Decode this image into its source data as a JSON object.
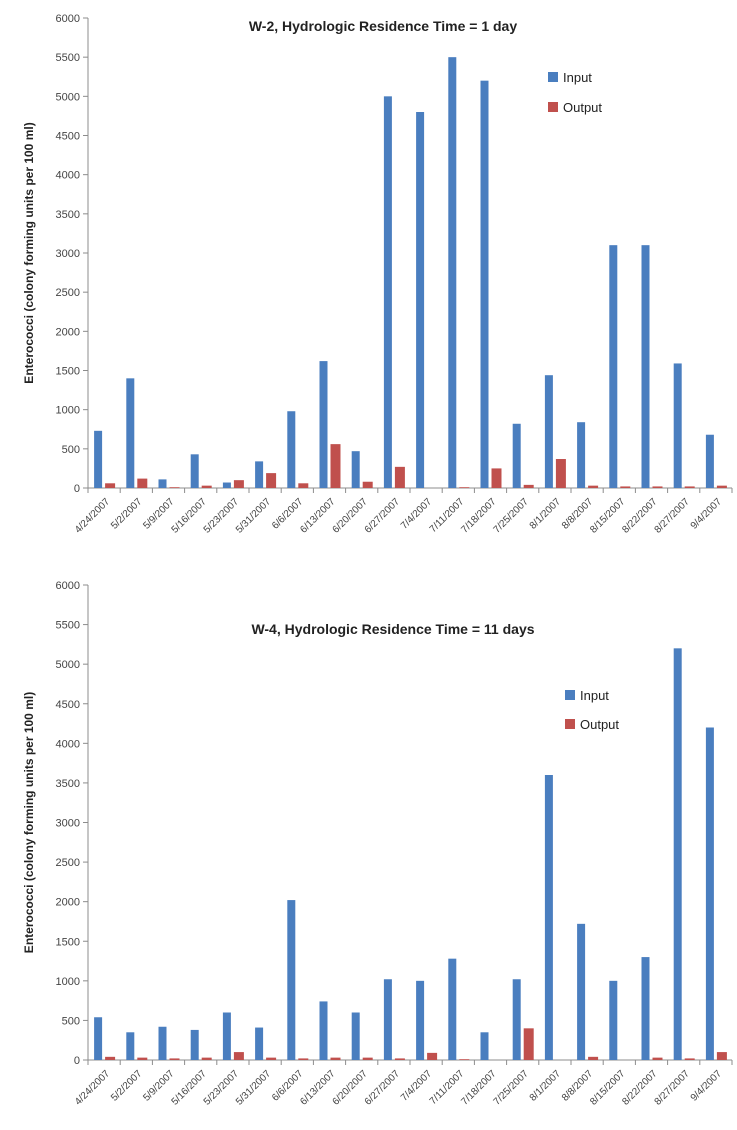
{
  "chart_data": [
    {
      "type": "bar",
      "title": "W-2, Hydrologic Residence Time = 1 day",
      "xlabel": "",
      "ylabel": "Enterococci (colony forming units per 100 ml)",
      "ylim": [
        0,
        6000
      ],
      "yticks": [
        "0",
        "500",
        "1000",
        "1500",
        "2000",
        "2500",
        "3000",
        "3500",
        "4000",
        "4500",
        "5000",
        "5500",
        "6000"
      ],
      "legend_position": "top-right",
      "grid": false,
      "categories": [
        "4/24/2007",
        "5/2/2007",
        "5/9/2007",
        "5/16/2007",
        "5/23/2007",
        "5/31/2007",
        "6/6/2007",
        "6/13/2007",
        "6/20/2007",
        "6/27/2007",
        "7/4/2007",
        "7/11/2007",
        "7/18/2007",
        "7/25/2007",
        "8/1/2007",
        "8/8/2007",
        "8/15/2007",
        "8/22/2007",
        "8/27/2007",
        "9/4/2007"
      ],
      "series": [
        {
          "name": "Input",
          "color": "#4a7ebf",
          "values": [
            730,
            1400,
            110,
            430,
            70,
            340,
            980,
            1620,
            470,
            5000,
            4800,
            5500,
            5200,
            820,
            1440,
            840,
            3100,
            3100,
            1590,
            680
          ]
        },
        {
          "name": "Output",
          "color": "#c0504d",
          "values": [
            60,
            120,
            10,
            30,
            100,
            190,
            60,
            560,
            80,
            270,
            0,
            10,
            250,
            40,
            370,
            30,
            20,
            20,
            20,
            30
          ]
        }
      ]
    },
    {
      "type": "bar",
      "title": "W-4, Hydrologic Residence Time = 11 days",
      "xlabel": "",
      "ylabel": "Enterococci (colony forming units per 100 ml)",
      "ylim": [
        0,
        6000
      ],
      "yticks": [
        "0",
        "500",
        "1000",
        "1500",
        "2000",
        "2500",
        "3000",
        "3500",
        "4000",
        "4500",
        "5000",
        "5500",
        "6000"
      ],
      "legend_position": "top-right",
      "grid": false,
      "categories": [
        "4/24/2007",
        "5/2/2007",
        "5/9/2007",
        "5/16/2007",
        "5/23/2007",
        "5/31/2007",
        "6/6/2007",
        "6/13/2007",
        "6/20/2007",
        "6/27/2007",
        "7/4/2007",
        "7/11/2007",
        "7/18/2007",
        "7/25/2007",
        "8/1/2007",
        "8/8/2007",
        "8/15/2007",
        "8/22/2007",
        "8/27/2007",
        "9/4/2007"
      ],
      "series": [
        {
          "name": "Input",
          "color": "#4a7ebf",
          "values": [
            540,
            350,
            420,
            380,
            600,
            410,
            2020,
            740,
            600,
            1020,
            1000,
            1280,
            350,
            1020,
            3600,
            1720,
            1000,
            1300,
            5200,
            4200
          ]
        },
        {
          "name": "Output",
          "color": "#c0504d",
          "values": [
            40,
            30,
            20,
            30,
            100,
            30,
            20,
            30,
            30,
            20,
            90,
            10,
            0,
            400,
            0,
            40,
            0,
            30,
            20,
            100
          ]
        }
      ]
    }
  ]
}
